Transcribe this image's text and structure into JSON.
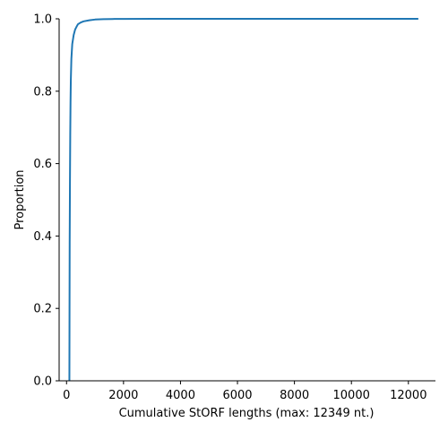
{
  "chart_data": {
    "type": "line",
    "title": "",
    "xlabel": "Cumulative StORF lengths (max: 12349 nt.)",
    "ylabel": "Proportion",
    "xlim": [
      -260,
      12950
    ],
    "ylim": [
      0.0,
      1.0
    ],
    "x_ticks": [
      0,
      2000,
      4000,
      6000,
      8000,
      10000,
      12000
    ],
    "y_ticks": [
      0.0,
      0.2,
      0.4,
      0.6,
      0.8,
      1.0
    ],
    "x_tick_labels": [
      "0",
      "2000",
      "4000",
      "6000",
      "8000",
      "10000",
      "12000"
    ],
    "y_tick_labels": [
      "0.0",
      "0.2",
      "0.4",
      "0.6",
      "0.8",
      "1.0"
    ],
    "grid": false,
    "series": [
      {
        "color": "#1f77b4",
        "x": [
          100,
          105,
          110,
          120,
          130,
          140,
          150,
          170,
          200,
          250,
          300,
          350,
          400,
          500,
          600,
          800,
          1000,
          1300,
          1600,
          2000,
          3000,
          5000,
          8000,
          12349
        ],
        "y": [
          0.0,
          0.2,
          0.38,
          0.55,
          0.68,
          0.77,
          0.83,
          0.89,
          0.93,
          0.955,
          0.97,
          0.978,
          0.985,
          0.99,
          0.993,
          0.996,
          0.998,
          0.999,
          0.9995,
          0.9998,
          1.0,
          1.0,
          1.0,
          1.0
        ]
      }
    ]
  }
}
